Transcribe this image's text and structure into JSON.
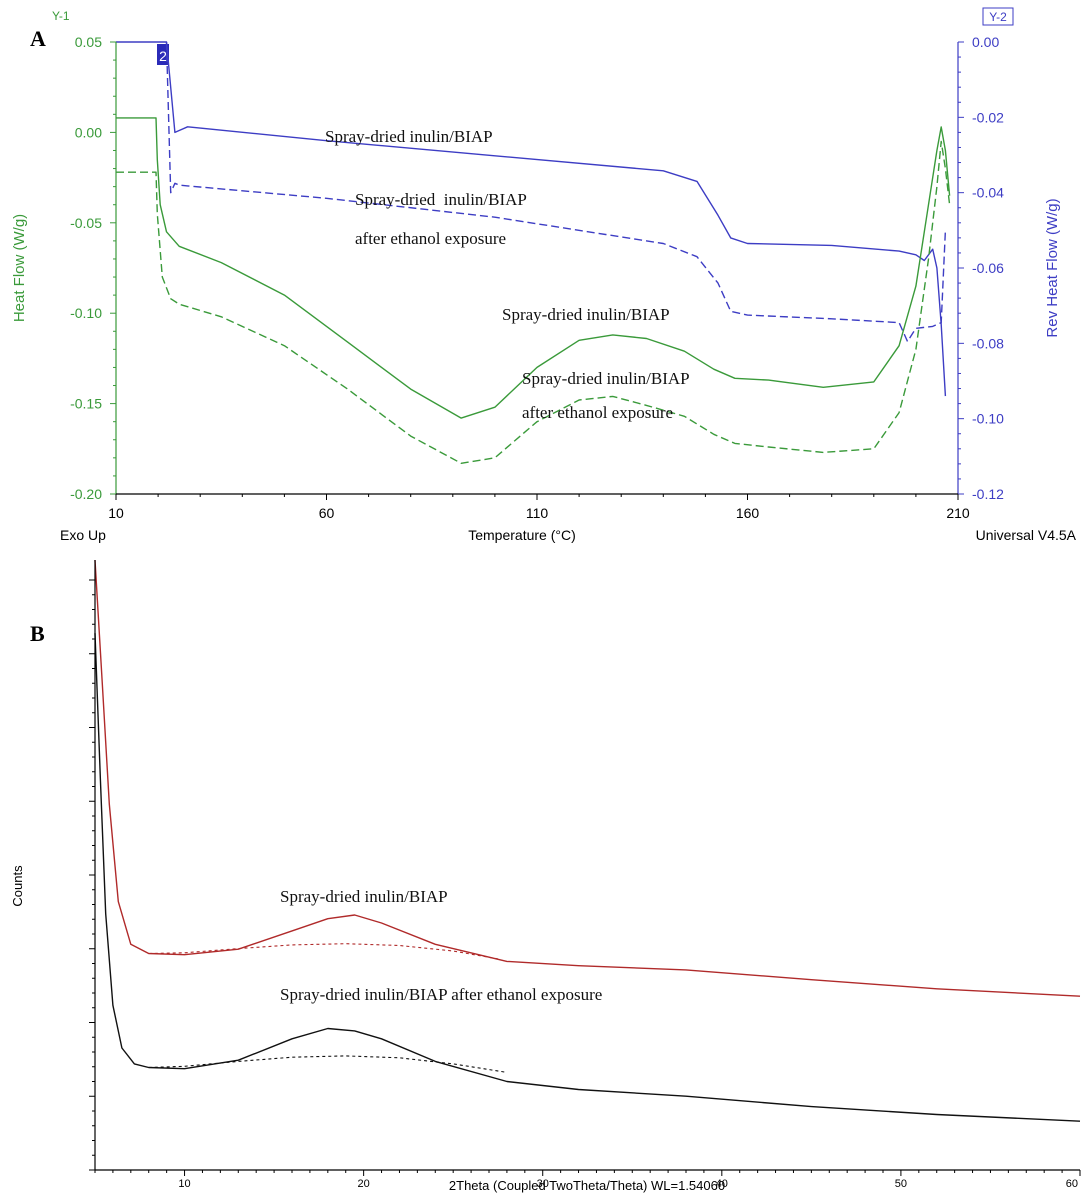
{
  "panel_a": {
    "label": "A",
    "y1_tag": "Y-1",
    "y2_tag": "Y-2",
    "marker_tag": "2",
    "exo_label": "Exo Up",
    "software_label": "Universal V4.5A",
    "colors": {
      "y1": "#3a9a3a",
      "y2": "#3d3dc4",
      "axis": "#000000"
    }
  },
  "panel_b": {
    "label": "B",
    "colors": {
      "upper": "#b02a2a",
      "lower": "#111111"
    }
  },
  "chart_data": [
    {
      "type": "line",
      "xlabel": "Temperature (°C)",
      "ylabel": "Heat Flow (W/g)",
      "y2label": "Rev Heat Flow (W/g)",
      "xlim": [
        10,
        210
      ],
      "ylim": [
        -0.2,
        0.05
      ],
      "y2lim": [
        -0.12,
        0.0
      ],
      "x_ticks": [
        "10",
        "60",
        "110",
        "160",
        "210"
      ],
      "y_ticks": [
        "0.05",
        "0.00",
        "-0.05",
        "-0.10",
        "-0.15",
        "-0.20"
      ],
      "y2_ticks": [
        "0.00",
        "-0.02",
        "-0.04",
        "-0.06",
        "-0.08",
        "-0.10",
        "-0.12"
      ],
      "annotations": [
        "Spray-dried inulin/BIAP",
        "Spray-dried  inulin/BIAP",
        "after ethanol exposure",
        "Spray-dried inulin/BIAP",
        "Spray-dried inulin/BIAP",
        "after ethanol exposure"
      ],
      "series": [
        {
          "axis": "y2",
          "style": "solid",
          "color": "#3d3dc4",
          "x": [
            10,
            22,
            24,
            25,
            27,
            60,
            100,
            140,
            148,
            153,
            156,
            160,
            180,
            196,
            200,
            202,
            204,
            205,
            206,
            207
          ],
          "y": [
            0.0,
            0.0,
            -0.024,
            -0.0235,
            -0.0225,
            -0.0262,
            -0.0302,
            -0.0342,
            -0.037,
            -0.046,
            -0.052,
            -0.0535,
            -0.054,
            -0.0555,
            -0.0565,
            -0.058,
            -0.055,
            -0.06,
            -0.075,
            -0.094
          ]
        },
        {
          "axis": "y2",
          "style": "dashed",
          "color": "#3d3dc4",
          "x": [
            22,
            23,
            24,
            25,
            27,
            60,
            100,
            140,
            148,
            153,
            156,
            160,
            180,
            196,
            198,
            200,
            204,
            206,
            207
          ],
          "y": [
            0.0,
            -0.04,
            -0.0375,
            -0.038,
            -0.0382,
            -0.0415,
            -0.0465,
            -0.0535,
            -0.057,
            -0.064,
            -0.0715,
            -0.0725,
            -0.0735,
            -0.0745,
            -0.0795,
            -0.076,
            -0.0755,
            -0.0745,
            -0.05
          ]
        },
        {
          "axis": "y1",
          "style": "solid",
          "color": "#3a9a3a",
          "x": [
            10,
            19.5,
            19.8,
            20.5,
            22,
            25,
            35,
            50,
            65,
            80,
            92,
            100,
            110,
            120,
            128,
            136,
            145,
            152,
            157,
            165,
            178,
            190,
            196,
            200,
            203,
            205,
            206,
            207,
            208
          ],
          "y": [
            0.008,
            0.008,
            -0.015,
            -0.04,
            -0.055,
            -0.063,
            -0.072,
            -0.09,
            -0.116,
            -0.142,
            -0.158,
            -0.152,
            -0.13,
            -0.115,
            -0.112,
            -0.114,
            -0.121,
            -0.131,
            -0.136,
            -0.137,
            -0.141,
            -0.138,
            -0.118,
            -0.085,
            -0.04,
            -0.01,
            0.003,
            -0.01,
            -0.035
          ]
        },
        {
          "axis": "y1",
          "style": "dashed",
          "color": "#3a9a3a",
          "x": [
            10,
            19.5,
            19.8,
            21,
            23,
            25,
            35,
            50,
            65,
            80,
            92,
            100,
            110,
            120,
            128,
            136,
            145,
            152,
            157,
            165,
            178,
            190,
            196,
            200,
            203,
            205,
            206,
            207,
            208
          ],
          "y": [
            -0.022,
            -0.022,
            -0.045,
            -0.08,
            -0.092,
            -0.095,
            -0.102,
            -0.118,
            -0.142,
            -0.168,
            -0.183,
            -0.18,
            -0.16,
            -0.148,
            -0.146,
            -0.151,
            -0.157,
            -0.167,
            -0.172,
            -0.174,
            -0.177,
            -0.175,
            -0.155,
            -0.12,
            -0.07,
            -0.03,
            -0.005,
            -0.02,
            -0.04
          ]
        }
      ]
    },
    {
      "type": "line",
      "xlabel": "2Theta (Coupled TwoTheta/Theta) WL=1.54060",
      "ylabel": "Counts",
      "xlim": [
        5,
        60
      ],
      "ylim": [
        0,
        1
      ],
      "x_ticks": [
        "10",
        "20",
        "30",
        "40",
        "50",
        "60"
      ],
      "annotations": [
        "Spray-dried inulin/BIAP",
        "Spray-dried inulin/BIAP after ethanol exposure"
      ],
      "series": [
        {
          "style": "solid",
          "color": "#b02a2a",
          "x": [
            5,
            5.4,
            5.8,
            6.3,
            7,
            8,
            10,
            13,
            16,
            18,
            19.5,
            21,
            24,
            28,
            32,
            38,
            45,
            52,
            60
          ],
          "y": [
            1.0,
            0.8,
            0.6,
            0.44,
            0.37,
            0.355,
            0.353,
            0.362,
            0.392,
            0.412,
            0.418,
            0.405,
            0.37,
            0.342,
            0.335,
            0.328,
            0.312,
            0.297,
            0.285
          ]
        },
        {
          "style": "dotted",
          "color": "#b02a2a",
          "x": [
            8,
            10,
            13,
            16,
            19,
            22,
            25,
            27.5
          ],
          "y": [
            0.355,
            0.356,
            0.363,
            0.369,
            0.371,
            0.368,
            0.359,
            0.346
          ]
        },
        {
          "style": "solid",
          "color": "#111111",
          "x": [
            5,
            5.3,
            5.6,
            6,
            6.5,
            7.2,
            8,
            10,
            13,
            16,
            18,
            19.5,
            21,
            24,
            28,
            32,
            38,
            45,
            52,
            60
          ],
          "y": [
            0.88,
            0.64,
            0.42,
            0.27,
            0.2,
            0.174,
            0.168,
            0.166,
            0.18,
            0.215,
            0.232,
            0.228,
            0.215,
            0.178,
            0.145,
            0.132,
            0.121,
            0.104,
            0.091,
            0.08
          ]
        },
        {
          "style": "dotted",
          "color": "#111111",
          "x": [
            8,
            10,
            13,
            16,
            19,
            22,
            25,
            28
          ],
          "y": [
            0.168,
            0.17,
            0.178,
            0.185,
            0.187,
            0.184,
            0.174,
            0.16
          ]
        }
      ]
    }
  ]
}
